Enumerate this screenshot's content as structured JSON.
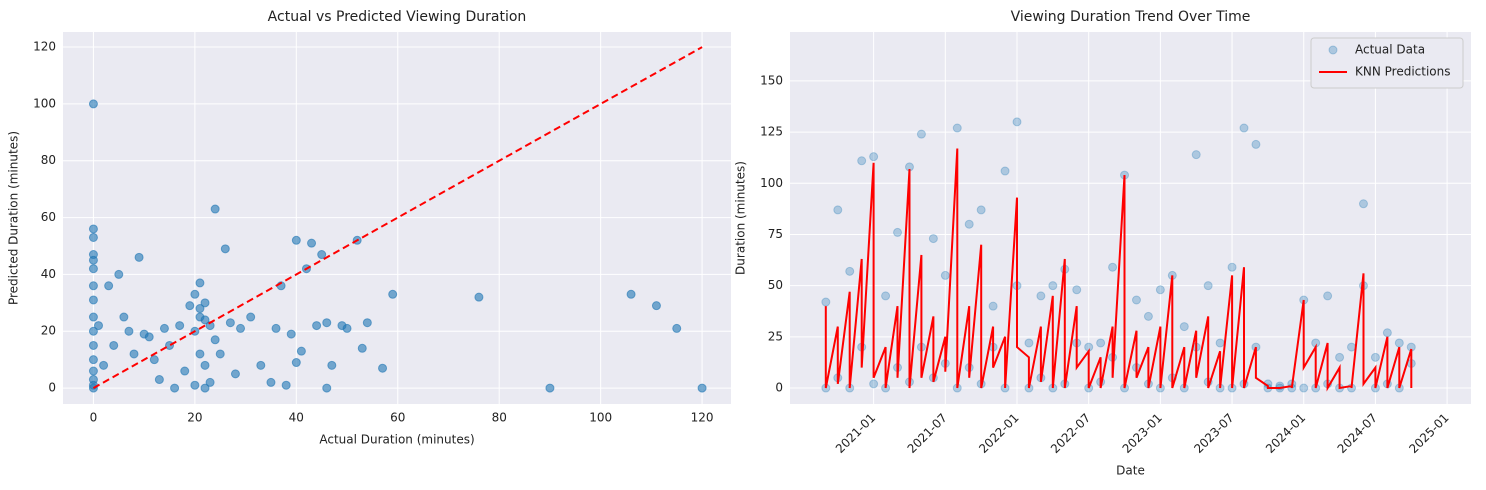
{
  "chart_data": [
    {
      "type": "scatter",
      "title": "Actual vs Predicted Viewing Duration",
      "x_label": "Actual Duration (minutes)",
      "y_label": "Predicted Duration (minutes)",
      "xlim": [
        -6,
        125.7
      ],
      "ylim": [
        -5.6,
        125.3
      ],
      "xticks": [
        0,
        20,
        40,
        60,
        80,
        100,
        120
      ],
      "yticks": [
        0,
        20,
        40,
        60,
        80,
        100,
        120
      ],
      "grid": true,
      "color": "#1f77b4",
      "alpha": 0.6,
      "x": [
        0,
        0,
        0,
        0,
        0,
        0,
        0,
        0,
        0,
        0,
        0,
        0,
        0,
        0,
        0,
        0,
        1,
        2,
        3,
        4,
        5,
        6,
        7,
        8,
        9,
        10,
        11,
        12,
        13,
        14,
        15,
        16,
        17,
        18,
        19,
        20,
        20,
        20,
        21,
        21,
        21,
        21,
        22,
        22,
        22,
        22,
        23,
        23,
        24,
        24,
        25,
        26,
        27,
        28,
        29,
        31,
        33,
        35,
        36,
        37,
        38,
        39,
        40,
        40,
        41,
        42,
        43,
        44,
        45,
        46,
        46,
        47,
        49,
        50,
        52,
        53,
        54,
        57,
        59,
        76,
        90,
        106,
        111,
        115,
        120
      ],
      "values": [
        100,
        56,
        53,
        47,
        45,
        42,
        36,
        31,
        25,
        20,
        15,
        10,
        6,
        3,
        1,
        0,
        22,
        8,
        36,
        15,
        40,
        25,
        20,
        12,
        46,
        19,
        18,
        10,
        3,
        21,
        15,
        0,
        22,
        6,
        29,
        33,
        20,
        1,
        28,
        25,
        12,
        37,
        24,
        8,
        30,
        0,
        22,
        2,
        63,
        17,
        12,
        49,
        23,
        5,
        21,
        25,
        8,
        2,
        21,
        36,
        1,
        19,
        52,
        9,
        13,
        42,
        51,
        22,
        47,
        0,
        23,
        8,
        22,
        21,
        52,
        14,
        23,
        7,
        33,
        32,
        0,
        33,
        29,
        21,
        0
      ],
      "reference_line": {
        "x": [
          0,
          120
        ],
        "values": [
          0,
          120
        ],
        "color": "#ff0000"
      }
    },
    {
      "type": "timeseries",
      "title": "Viewing Duration Trend Over Time",
      "x_label": "Date",
      "y_label": "Duration (minutes)",
      "xlim": [
        "2020-06",
        "2025-03"
      ],
      "ylim": [
        -7.8,
        173.9
      ],
      "xticks": [
        "2021-01",
        "2021-07",
        "2022-01",
        "2022-07",
        "2023-01",
        "2023-07",
        "2024-01",
        "2024-07",
        "2025-01"
      ],
      "yticks": [
        0,
        25,
        50,
        75,
        100,
        125,
        150
      ],
      "grid": true,
      "legend": "upper right",
      "x": [
        "2020-09",
        "2020-09",
        "2020-10",
        "2020-10",
        "2020-11",
        "2020-11",
        "2020-12",
        "2020-12",
        "2021-01",
        "2021-01",
        "2021-02",
        "2021-02",
        "2021-03",
        "2021-03",
        "2021-04",
        "2021-04",
        "2021-05",
        "2021-05",
        "2021-06",
        "2021-06",
        "2021-07",
        "2021-07",
        "2021-08",
        "2021-08",
        "2021-09",
        "2021-09",
        "2021-10",
        "2021-10",
        "2021-11",
        "2021-11",
        "2021-12",
        "2021-12",
        "2022-01",
        "2022-01",
        "2022-02",
        "2022-02",
        "2022-03",
        "2022-03",
        "2022-04",
        "2022-04",
        "2022-05",
        "2022-05",
        "2022-06",
        "2022-06",
        "2022-07",
        "2022-07",
        "2022-08",
        "2022-08",
        "2022-09",
        "2022-09",
        "2022-10",
        "2022-10",
        "2022-11",
        "2022-11",
        "2022-12",
        "2022-12",
        "2023-01",
        "2023-01",
        "2023-02",
        "2023-02",
        "2023-03",
        "2023-03",
        "2023-04",
        "2023-04",
        "2023-05",
        "2023-05",
        "2023-06",
        "2023-06",
        "2023-07",
        "2023-07",
        "2023-08",
        "2023-08",
        "2023-09",
        "2023-09",
        "2023-10",
        "2023-10",
        "2023-11",
        "2023-11",
        "2023-12",
        "2023-12",
        "2024-01",
        "2024-01",
        "2024-02",
        "2024-02",
        "2024-03",
        "2024-03",
        "2024-04",
        "2024-04",
        "2024-05",
        "2024-05",
        "2024-06",
        "2024-06",
        "2024-07",
        "2024-07",
        "2024-08",
        "2024-08",
        "2024-09",
        "2024-09",
        "2024-10",
        "2024-10"
      ],
      "series": [
        {
          "name": "Actual Data",
          "type": "scatter",
          "color": "#1f77b4",
          "alpha": 0.3,
          "values": [
            42,
            0,
            87,
            5,
            57,
            0,
            111,
            20,
            113,
            2,
            45,
            0,
            76,
            10,
            108,
            3,
            124,
            20,
            73,
            5,
            55,
            12,
            127,
            0,
            80,
            10,
            87,
            2,
            40,
            20,
            106,
            0,
            130,
            50,
            22,
            0,
            45,
            5,
            50,
            0,
            58,
            2,
            48,
            22,
            20,
            0,
            22,
            3,
            59,
            15,
            104,
            0,
            43,
            10,
            35,
            2,
            48,
            0,
            55,
            5,
            30,
            0,
            114,
            20,
            50,
            3,
            22,
            0,
            59,
            0,
            127,
            2,
            119,
            20,
            2,
            0,
            1,
            0,
            2,
            0,
            43,
            0,
            22,
            0,
            45,
            2,
            15,
            0,
            20,
            0,
            90,
            50,
            15,
            0,
            27,
            2,
            22,
            0,
            20,
            12
          ]
        },
        {
          "name": "KNN Predictions",
          "type": "line",
          "color": "#ff0000",
          "values": [
            40,
            0,
            30,
            2,
            47,
            0,
            63,
            10,
            110,
            5,
            20,
            0,
            40,
            5,
            107,
            0,
            65,
            5,
            35,
            3,
            25,
            8,
            117,
            0,
            40,
            5,
            70,
            0,
            30,
            10,
            25,
            0,
            93,
            20,
            15,
            0,
            30,
            3,
            45,
            0,
            63,
            0,
            40,
            10,
            18,
            0,
            15,
            0,
            30,
            5,
            104,
            0,
            28,
            5,
            20,
            0,
            30,
            0,
            55,
            0,
            20,
            0,
            28,
            5,
            35,
            0,
            18,
            0,
            55,
            0,
            59,
            0,
            20,
            5,
            1,
            0,
            0,
            0,
            1,
            0,
            43,
            10,
            20,
            0,
            22,
            0,
            10,
            0,
            1,
            0,
            56,
            2,
            10,
            0,
            25,
            0,
            20,
            0,
            19,
            0
          ]
        }
      ]
    }
  ]
}
